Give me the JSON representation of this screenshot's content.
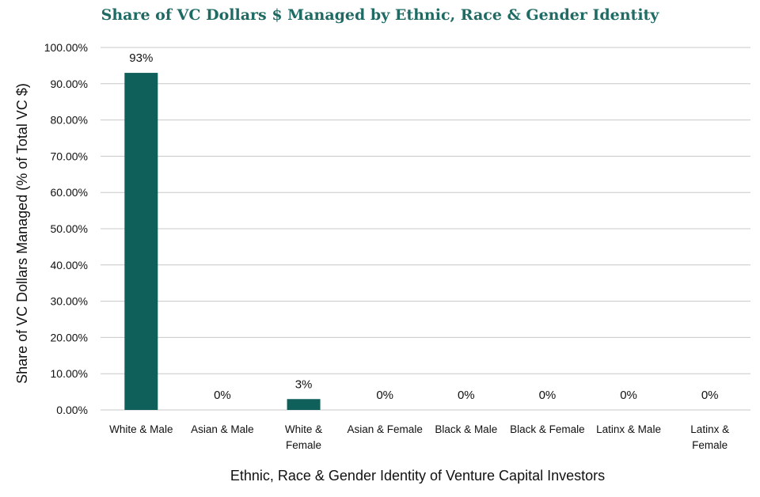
{
  "chart_data": {
    "type": "bar",
    "title": "Share of VC Dollars $ Managed by Ethnic, Race & Gender Identity",
    "xlabel": "Ethnic, Race & Gender Identity of Venture Capital Investors",
    "ylabel": "Share of  VC Dollars Managed (% of Total VC $)",
    "categories": [
      [
        "White & Male"
      ],
      [
        "Asian & Male"
      ],
      [
        "White &",
        "Female"
      ],
      [
        "Asian & Female"
      ],
      [
        "Black & Male"
      ],
      [
        "Black & Female"
      ],
      [
        "Latinx & Male"
      ],
      [
        "Latinx &",
        "Female"
      ]
    ],
    "values": [
      93,
      0,
      3,
      0,
      0,
      0,
      0,
      0
    ],
    "data_labels": [
      "93%",
      "0%",
      "3%",
      "0%",
      "0%",
      "0%",
      "0%",
      "0%"
    ],
    "ylim": [
      0,
      100
    ],
    "yticks": [
      0,
      10,
      20,
      30,
      40,
      50,
      60,
      70,
      80,
      90,
      100
    ],
    "ytick_labels": [
      "0.00%",
      "10.00%",
      "20.00%",
      "30.00%",
      "40.00%",
      "50.00%",
      "60.00%",
      "70.00%",
      "80.00%",
      "90.00%",
      "100.00%"
    ],
    "grid": true,
    "legend": "none",
    "bar_color": "#0f5f5a"
  }
}
